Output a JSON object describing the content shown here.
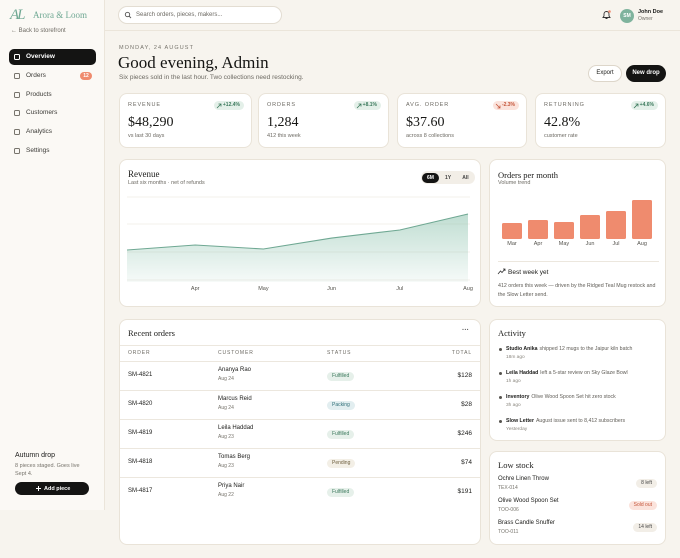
{
  "sidebar": {
    "logo_mark": "AL",
    "brand": "Arora & Loom",
    "back": "← Back to storefront",
    "nav": [
      {
        "label": "Overview",
        "active": true
      },
      {
        "label": "Orders",
        "badge": 12
      },
      {
        "label": "Products"
      },
      {
        "label": "Customers"
      },
      {
        "label": "Analytics"
      },
      {
        "label": "Settings"
      }
    ],
    "promo": {
      "title": "Autumn drop",
      "text": "8 pieces staged. Goes live Sept 4.",
      "button": "Add piece"
    }
  },
  "topbar": {
    "search": "Search orders, pieces, makers...",
    "user": {
      "initials": "SM",
      "name": "John Doe",
      "role": "Owner"
    }
  },
  "header": {
    "date": "MONDAY, 24 AUGUST",
    "title": "Good evening, Admin",
    "subtitle": "Six pieces sold in the last hour. Two collections need restocking.",
    "actions": [
      "Export",
      "New drop"
    ]
  },
  "kpis": [
    {
      "label": "REVENUE",
      "delta": "+12.4%",
      "trend": "up",
      "value": "$48,290",
      "note": "vs last 30 days"
    },
    {
      "label": "ORDERS",
      "delta": "+8.1%",
      "trend": "up",
      "value": "1,284",
      "note": "412 this week"
    },
    {
      "label": "AVG. ORDER",
      "delta": "-2.3%",
      "trend": "down",
      "value": "$37.60",
      "note": "across 8 collections"
    },
    {
      "label": "RETURNING",
      "delta": "+4.6%",
      "trend": "up",
      "value": "42.8%",
      "note": "customer rate"
    }
  ],
  "revenue": {
    "title": "Revenue",
    "subtitle": "Last six months · net of refunds",
    "ranges": [
      "6M",
      "1Y",
      "All"
    ],
    "active_range": 0,
    "chart_data": {
      "type": "line",
      "categories": [
        null,
        "Apr",
        "May",
        "Jun",
        "Jul",
        "Aug"
      ],
      "values": [
        22700,
        26300,
        23400,
        31200,
        36900,
        48290
      ],
      "color": "#8cc2ad",
      "grid": true
    }
  },
  "orders_chart": {
    "title": "Orders per month",
    "subtitle": "Volume trend",
    "chart_data": {
      "type": "bar",
      "categories": [
        "Mar",
        "Apr",
        "May",
        "Jun",
        "Jul",
        "Aug"
      ],
      "values": [
        527,
        626,
        560,
        790,
        922,
        1284
      ],
      "color": "#ef8b6e"
    },
    "highlight": {
      "title": "Best week yet",
      "text": "412 orders this week — driven by the Ridged Teal Mug restock and the Slow Letter send."
    }
  },
  "recent_orders": {
    "title": "Recent orders",
    "menu": "···",
    "columns": [
      "ORDER",
      "CUSTOMER",
      "STATUS",
      "TOTAL"
    ],
    "rows": [
      {
        "id": "SM-4821",
        "customer": "Ananya Rao",
        "date": "Aug 24",
        "status": "Fulfilled",
        "total": "$128"
      },
      {
        "id": "SM-4820",
        "customer": "Marcus Reid",
        "date": "Aug 24",
        "status": "Packing",
        "total": "$28"
      },
      {
        "id": "SM-4819",
        "customer": "Leila Haddad",
        "date": "Aug 23",
        "status": "Fulfilled",
        "total": "$246"
      },
      {
        "id": "SM-4818",
        "customer": "Tomas Berg",
        "date": "Aug 23",
        "status": "Pending",
        "total": "$74"
      },
      {
        "id": "SM-4817",
        "customer": "Priya Nair",
        "date": "Aug 22",
        "status": "Fulfilled",
        "total": "$191"
      }
    ]
  },
  "activity": {
    "title": "Activity",
    "items": [
      {
        "actor": "Studio Anika",
        "text": "shipped 12 mugs to the Jaipur kiln batch",
        "time": "18m ago"
      },
      {
        "actor": "Leila Haddad",
        "text": "left a 5-star review on Sky Glaze Bowl",
        "time": "1h ago"
      },
      {
        "actor": "Inventory",
        "text": "Olive Wood Spoon Set hit zero stock",
        "time": "3h ago"
      },
      {
        "actor": "Slow Letter",
        "text": "August issue sent to 8,412 subscribers",
        "time": "Yesterday"
      }
    ]
  },
  "low_stock": {
    "title": "Low stock",
    "items": [
      {
        "name": "Ochre Linen Throw",
        "sku": "TEX-014",
        "stock": "8 left",
        "tone": "neutral"
      },
      {
        "name": "Olive Wood Spoon Set",
        "sku": "TOO-006",
        "stock": "Sold out",
        "tone": "alert"
      },
      {
        "name": "Brass Candle Snuffer",
        "sku": "TOO-011",
        "stock": "14 left",
        "tone": "neutral"
      }
    ]
  }
}
